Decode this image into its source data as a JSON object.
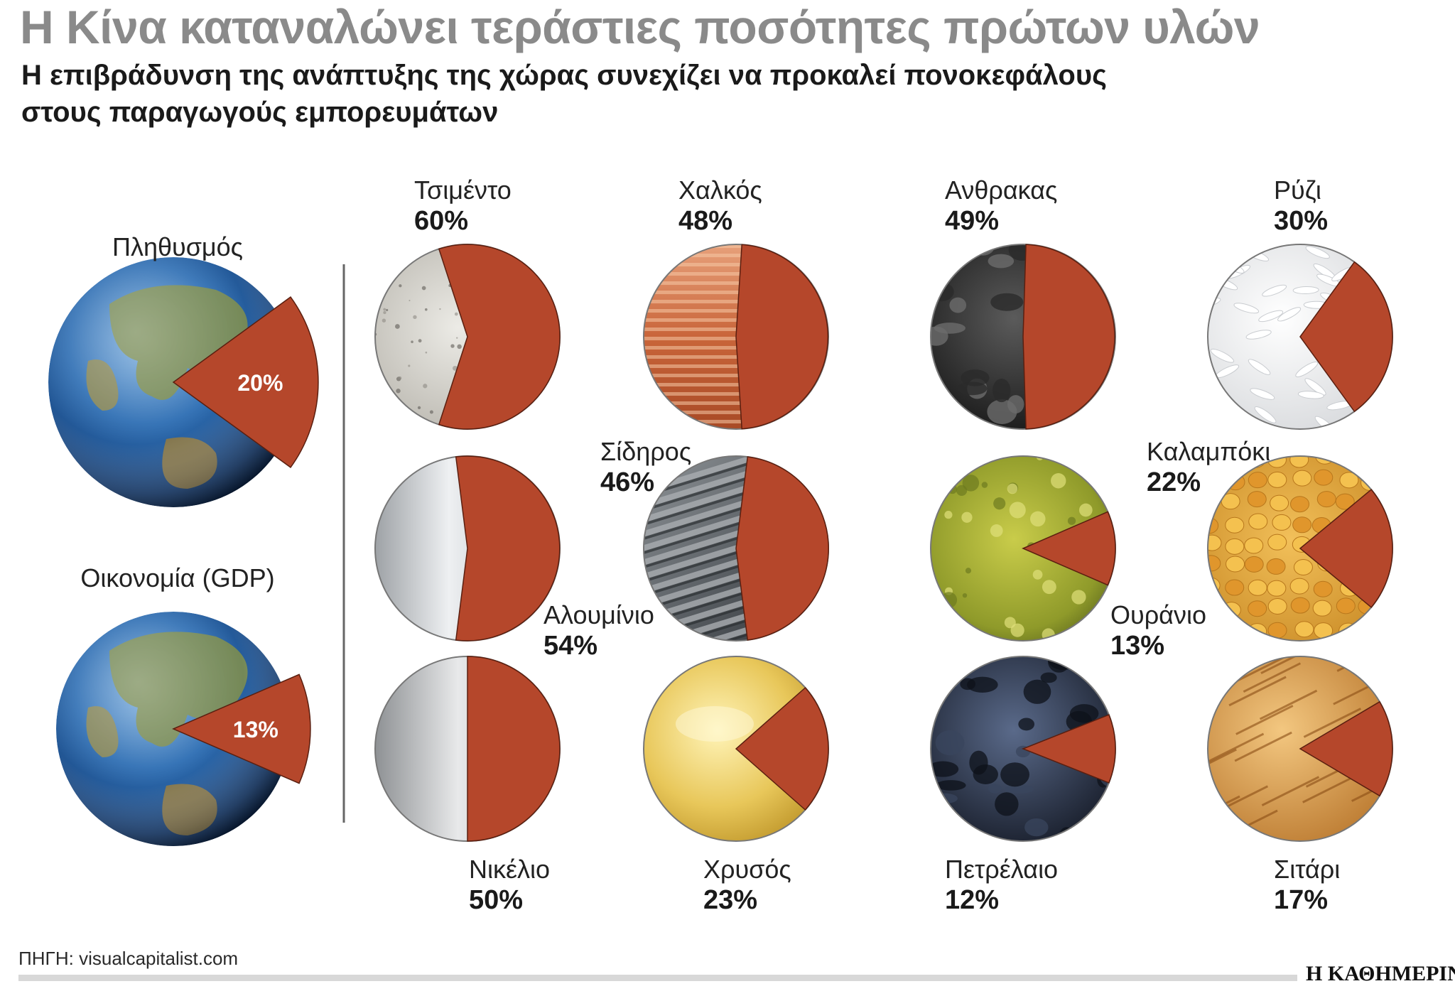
{
  "title": "Η Κίνα καταναλώνει τεράστιες ποσότητες πρώτων υλών",
  "subtitle_line1": "Η επιβράδυνση της ανάπτυξης της χώρας συνεχίζει να προκαλεί πονοκεφάλους",
  "subtitle_line2": "στους παραγωγούς εμπορευμάτων",
  "source": "ΠΗΓΗ: visualcapitalist.com",
  "brand": "Η ΚΑΘΗΜΕΡΙΝΗ",
  "colors": {
    "slice": "#b5472b",
    "title": "#8a8a8a"
  },
  "chart_data": {
    "type": "pie",
    "unit": "%",
    "world": [
      {
        "name": "Πληθυσμός",
        "value": 20,
        "label": "20%"
      },
      {
        "name": "Οικονομία (GDP)",
        "value": 13,
        "label": "13%"
      }
    ],
    "commodities": [
      {
        "name": "Τσιμέντο",
        "value": 60,
        "label": "60%",
        "texture": "cement"
      },
      {
        "name": "Χαλκός",
        "value": 48,
        "label": "48%",
        "texture": "copper"
      },
      {
        "name": "Ανθρακας",
        "value": 49,
        "label": "49%",
        "texture": "coal"
      },
      {
        "name": "Ρύζι",
        "value": 30,
        "label": "30%",
        "texture": "rice"
      },
      {
        "name": "Αλουμίνιο",
        "value": 54,
        "label": "54%",
        "texture": "aluminium"
      },
      {
        "name": "Σίδηρος",
        "value": 46,
        "label": "46%",
        "texture": "iron"
      },
      {
        "name": "Ουράνιο",
        "value": 13,
        "label": "13%",
        "texture": "uranium"
      },
      {
        "name": "Καλαμπόκι",
        "value": 22,
        "label": "22%",
        "texture": "corn"
      },
      {
        "name": "Νικέλιο",
        "value": 50,
        "label": "50%",
        "texture": "nickel"
      },
      {
        "name": "Χρυσός",
        "value": 23,
        "label": "23%",
        "texture": "gold"
      },
      {
        "name": "Πετρέλαιο",
        "value": 12,
        "label": "12%",
        "texture": "oil"
      },
      {
        "name": "Σιτάρι",
        "value": 17,
        "label": "17%",
        "texture": "wheat"
      }
    ]
  }
}
